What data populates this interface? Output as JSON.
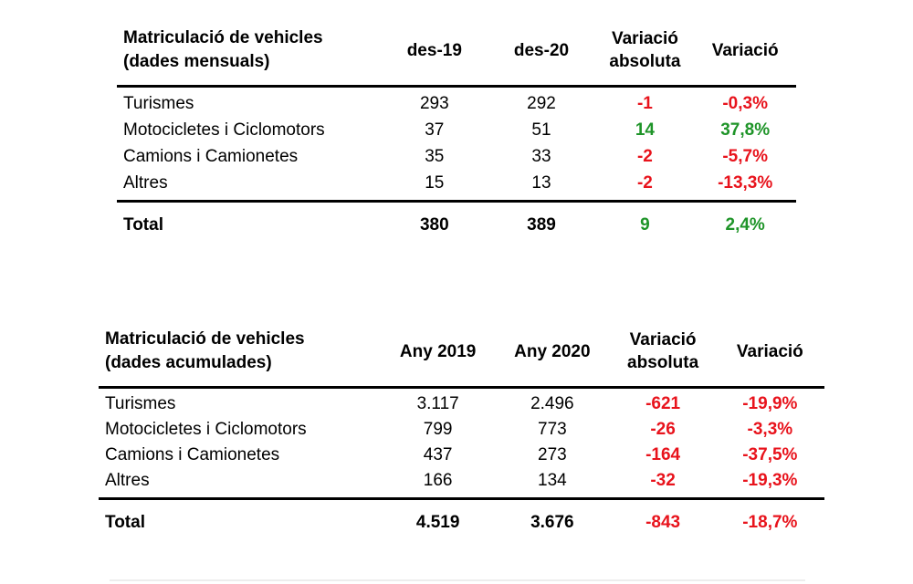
{
  "colors": {
    "positive": "#1e9428",
    "negative": "#e8131c",
    "text": "#000000",
    "rule": "#000000",
    "faint_bottom_line": "#ededed"
  },
  "tables": [
    {
      "title": "Matriculació de vehicles",
      "subtitle": "(dades mensuals)",
      "columns": [
        "des-19",
        "des-20",
        "Variació absoluta",
        "Variació"
      ],
      "rows": [
        {
          "label": "Turismes",
          "v1": "293",
          "v2": "292",
          "abs": "-1",
          "pct": "-0,3%",
          "trend": "down"
        },
        {
          "label": "Motocicletes i Ciclomotors",
          "v1": "37",
          "v2": "51",
          "abs": "14",
          "pct": "37,8%",
          "trend": "up"
        },
        {
          "label": "Camions i Camionetes",
          "v1": "35",
          "v2": "33",
          "abs": "-2",
          "pct": "-5,7%",
          "trend": "down"
        },
        {
          "label": "Altres",
          "v1": "15",
          "v2": "13",
          "abs": "-2",
          "pct": "-13,3%",
          "trend": "down"
        }
      ],
      "total": {
        "label": "Total",
        "v1": "380",
        "v2": "389",
        "abs": "9",
        "pct": "2,4%",
        "trend": "up"
      }
    },
    {
      "title": "Matriculació de vehicles",
      "subtitle": "(dades acumulades)",
      "columns": [
        "Any 2019",
        "Any 2020",
        "Variació absoluta",
        "Variació"
      ],
      "rows": [
        {
          "label": "Turismes",
          "v1": "3.117",
          "v2": "2.496",
          "abs": "-621",
          "pct": "-19,9%",
          "trend": "down"
        },
        {
          "label": "Motocicletes i Ciclomotors",
          "v1": "799",
          "v2": "773",
          "abs": "-26",
          "pct": "-3,3%",
          "trend": "down"
        },
        {
          "label": "Camions i Camionetes",
          "v1": "437",
          "v2": "273",
          "abs": "-164",
          "pct": "-37,5%",
          "trend": "down"
        },
        {
          "label": "Altres",
          "v1": "166",
          "v2": "134",
          "abs": "-32",
          "pct": "-19,3%",
          "trend": "down"
        }
      ],
      "total": {
        "label": "Total",
        "v1": "4.519",
        "v2": "3.676",
        "abs": "-843",
        "pct": "-18,7%",
        "trend": "down"
      }
    }
  ]
}
